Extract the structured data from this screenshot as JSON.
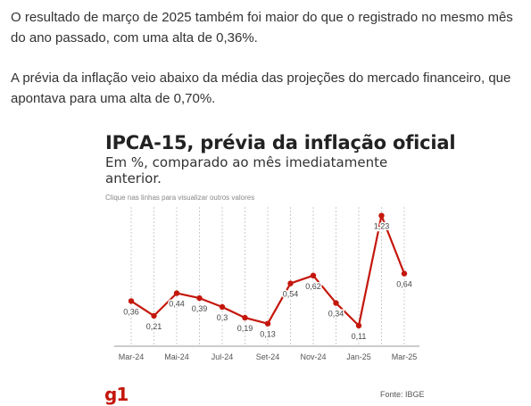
{
  "article": {
    "paragraph1": "O resultado de março de 2025 também foi maior do que o registrado no mesmo mês do ano passado, com uma alta de 0,36%.",
    "paragraph2": "A prévia da inflação veio abaixo da média das projeções do mercado financeiro, que apontava para uma alta de 0,70%."
  },
  "widget": {
    "hint": "Clique nas linhas para visualizar outros valores",
    "logo": "g1",
    "source": "Fonte: IBGE"
  },
  "colors": {
    "series": "#c4170c",
    "grid": "#cccccc",
    "axis": "#999999"
  },
  "chart_data": {
    "type": "line",
    "title": "IPCA-15, prévia da inflação oficial",
    "subtitle": "Em %, comparado ao mês imediatamente anterior.",
    "xlabel": "",
    "ylabel": "",
    "x": [
      "Mar-24",
      "Abr-24",
      "Mai-24",
      "Jun-24",
      "Jul-24",
      "Ago-24",
      "Set-24",
      "Out-24",
      "Nov-24",
      "Dez-24",
      "Jan-25",
      "Fev-25",
      "Mar-25"
    ],
    "tick_labels": [
      "Mar-24",
      "Mai-24",
      "Jul-24",
      "Set-24",
      "Nov-24",
      "Jan-25",
      "Mar-25"
    ],
    "series": [
      {
        "values": [
          0.36,
          0.21,
          0.44,
          0.39,
          0.3,
          0.19,
          0.13,
          0.54,
          0.62,
          0.34,
          0.11,
          1.23,
          0.64
        ],
        "labels": [
          "0,36",
          "0,21",
          "0,44",
          "0,39",
          "0,3",
          "0,19",
          "0,13",
          "0,54",
          "0,62",
          "0,34",
          "0,11",
          "1,23",
          "0,64"
        ]
      }
    ],
    "ylim": [
      0,
      1.3
    ],
    "grid": "vertical dashed",
    "legend": "none"
  }
}
